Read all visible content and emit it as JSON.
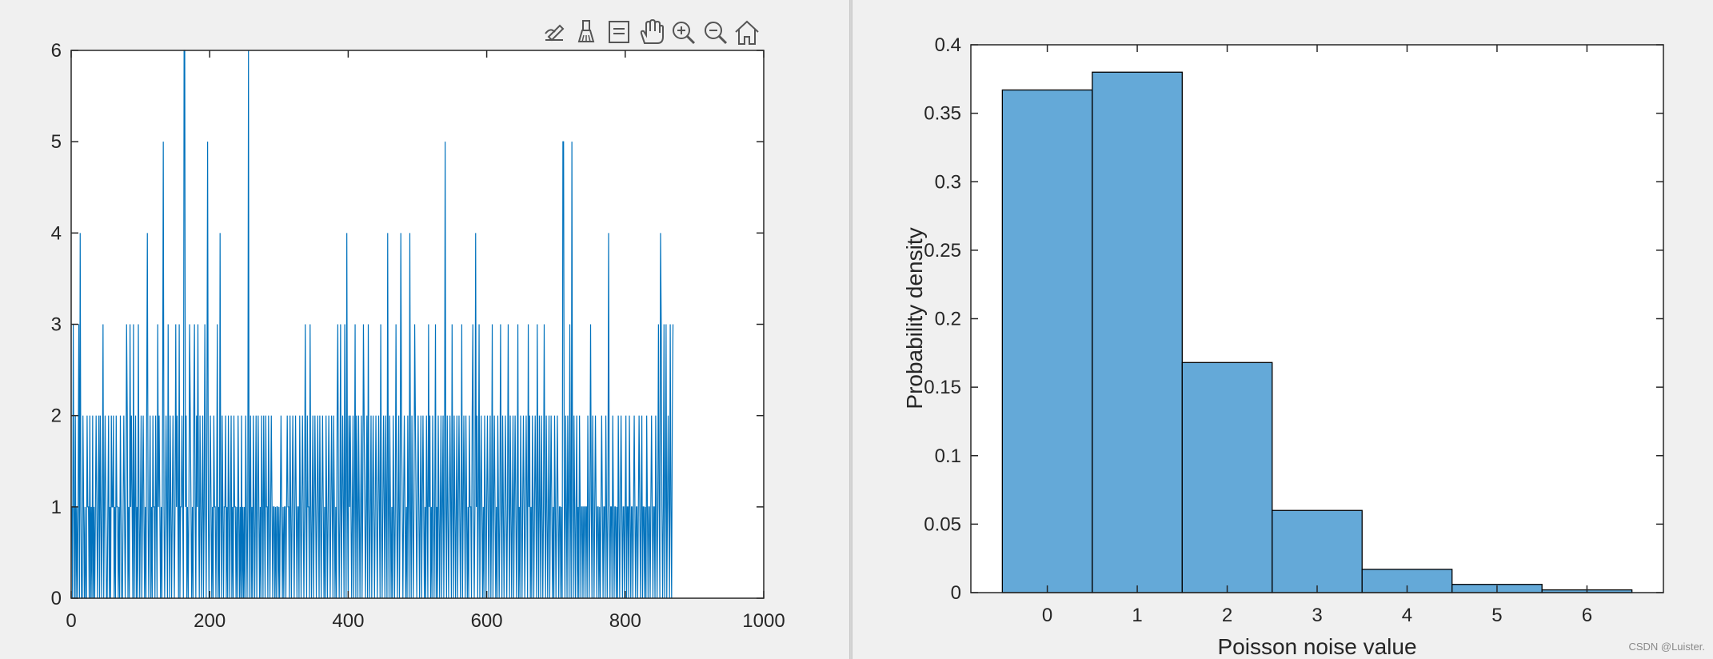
{
  "toolbar": {
    "icons": [
      "edit-icon",
      "brush-icon",
      "datatip-icon",
      "pan-icon",
      "zoom-in-icon",
      "zoom-out-icon",
      "home-icon"
    ]
  },
  "watermark": "CSDN @Luister.",
  "colors": {
    "series": "#0072bd",
    "bar_fill": "#64a9d8",
    "bar_edge": "#000000",
    "axes_bg": "#ffffff",
    "figure_bg": "#f0f0f0"
  },
  "chart_data": [
    {
      "type": "line",
      "title": "",
      "xlabel": "",
      "ylabel": "",
      "xlim": [
        0,
        1000
      ],
      "ylim": [
        0,
        6
      ],
      "xticks": [
        0,
        200,
        400,
        600,
        800,
        1000
      ],
      "yticks": [
        0,
        1,
        2,
        3,
        4,
        5,
        6
      ],
      "grid": false,
      "series": [
        {
          "x_start": 1,
          "x_step": 1,
          "values": [
            1,
            0,
            3,
            1,
            0,
            2,
            0,
            1,
            0,
            1,
            3,
            0,
            4,
            1,
            0,
            0,
            2,
            1,
            0,
            1,
            0,
            0,
            2,
            1,
            1,
            0,
            2,
            0,
            1,
            0,
            2,
            0,
            1,
            0,
            1,
            2,
            1,
            0,
            1,
            2,
            0,
            2,
            1,
            0,
            1,
            3,
            0,
            1,
            2,
            1,
            0,
            0,
            1,
            2,
            0,
            1,
            0,
            2,
            1,
            1,
            2,
            0,
            1,
            0,
            2,
            1,
            1,
            0,
            1,
            0,
            2,
            1,
            0,
            0,
            1,
            2,
            1,
            0,
            1,
            3,
            2,
            0,
            1,
            0,
            3,
            1,
            2,
            1,
            0,
            3,
            0,
            1,
            2,
            0,
            1,
            0,
            3,
            1,
            0,
            1,
            2,
            0,
            1,
            2,
            1,
            0,
            1,
            0,
            2,
            4,
            1,
            0,
            1,
            2,
            0,
            1,
            0,
            2,
            1,
            1,
            0,
            2,
            1,
            0,
            3,
            1,
            2,
            1,
            0,
            1,
            0,
            2,
            5,
            1,
            0,
            1,
            2,
            1,
            0,
            3,
            1,
            0,
            2,
            1,
            0,
            1,
            2,
            1,
            0,
            1,
            3,
            1,
            2,
            1,
            0,
            3,
            0,
            1,
            1,
            2,
            1,
            0,
            6,
            6,
            1,
            2,
            0,
            1,
            0,
            1,
            3,
            2,
            1,
            0,
            1,
            0,
            2,
            3,
            1,
            0,
            2,
            1,
            3,
            1,
            0,
            2,
            1,
            0,
            1,
            2,
            0,
            1,
            3,
            1,
            0,
            2,
            5,
            1,
            0,
            1,
            2,
            1,
            0,
            1,
            0,
            2,
            1,
            1,
            0,
            1,
            3,
            0,
            1,
            0,
            4,
            1,
            0,
            2,
            1,
            0,
            1,
            1,
            2,
            0,
            1,
            0,
            2,
            1,
            0,
            1,
            2,
            0,
            1,
            0,
            2,
            1,
            1,
            0,
            1,
            0,
            2,
            1,
            0,
            1,
            0,
            2,
            0,
            1,
            0,
            1,
            0,
            2,
            1,
            0,
            1,
            6,
            0,
            1,
            2,
            0,
            1,
            0,
            2,
            1,
            0,
            1,
            2,
            0,
            1,
            2,
            1,
            0,
            1,
            0,
            2,
            1,
            0,
            2,
            1,
            0,
            2,
            1,
            1,
            0,
            2,
            1,
            0,
            1,
            2,
            1,
            0,
            1,
            1,
            0,
            1,
            0,
            1,
            1,
            0,
            1,
            0,
            1,
            2,
            1,
            0,
            1,
            0,
            1,
            1,
            0,
            1,
            2,
            1,
            1,
            0,
            2,
            1,
            0,
            1,
            2,
            1,
            0,
            1,
            2,
            1,
            0,
            1,
            1,
            0,
            2,
            1,
            0,
            1,
            2,
            1,
            0,
            1,
            3,
            1,
            0,
            2,
            1,
            1,
            0,
            3,
            1,
            0,
            1,
            2,
            0,
            1,
            2,
            1,
            0,
            1,
            2,
            1,
            0,
            2,
            1,
            0,
            1,
            2,
            1,
            0,
            1,
            0,
            2,
            1,
            0,
            1,
            2,
            1,
            0,
            1,
            2,
            1,
            0,
            2,
            1,
            0,
            1,
            0,
            2,
            3,
            1,
            0,
            1,
            3,
            0,
            1,
            2,
            1,
            0,
            3,
            1,
            0,
            4,
            1,
            0,
            2,
            1,
            2,
            1,
            0,
            1,
            2,
            0,
            1,
            3,
            0,
            2,
            1,
            0,
            2,
            1,
            0,
            1,
            2,
            0,
            1,
            3,
            2,
            1,
            0,
            1,
            2,
            0,
            3,
            1,
            0,
            1,
            2,
            0,
            1,
            2,
            1,
            0,
            1,
            2,
            1,
            0,
            1,
            2,
            1,
            0,
            3,
            1,
            0,
            1,
            2,
            1,
            0,
            2,
            1,
            0,
            4,
            1,
            0,
            2,
            1,
            0,
            1,
            0,
            2,
            1,
            0,
            1,
            3,
            1,
            0,
            1,
            2,
            0,
            1,
            4,
            2,
            1,
            0,
            1,
            2,
            1,
            0,
            1,
            0,
            2,
            1,
            0,
            4,
            1,
            0,
            2,
            1,
            0,
            1,
            3,
            2,
            1,
            0,
            1,
            2,
            1,
            0,
            1,
            2,
            0,
            1,
            2,
            1,
            0,
            1,
            0,
            2,
            1,
            0,
            3,
            1,
            2,
            0,
            1,
            0,
            2,
            1,
            0,
            1,
            3,
            0,
            1,
            0,
            2,
            1,
            0,
            1,
            2,
            0,
            1,
            2,
            0,
            1,
            5,
            1,
            0,
            2,
            1,
            0,
            1,
            2,
            1,
            0,
            3,
            1,
            0,
            2,
            1,
            0,
            1,
            2,
            0,
            1,
            2,
            1,
            0,
            1,
            3,
            0,
            1,
            2,
            1,
            0,
            2,
            1,
            0,
            1,
            0,
            2,
            1,
            1,
            0,
            2,
            3,
            1,
            0,
            1,
            4,
            1,
            2,
            0,
            1,
            3,
            0,
            1,
            2,
            1,
            0,
            1,
            0,
            2,
            1,
            0,
            1,
            2,
            1,
            0,
            1,
            2,
            0,
            1,
            3,
            0,
            1,
            2,
            1,
            0,
            1,
            0,
            2,
            1,
            0,
            1,
            3,
            1,
            0,
            2,
            1,
            0,
            1,
            2,
            1,
            0,
            1,
            3,
            1,
            0,
            2,
            1,
            0,
            1,
            2,
            0,
            1,
            2,
            1,
            0,
            1,
            3,
            0,
            1,
            0,
            2,
            1,
            0,
            1,
            2,
            1,
            0,
            1,
            2,
            1,
            0,
            3,
            1,
            2,
            0,
            1,
            0,
            2,
            1,
            0,
            1,
            2,
            1,
            0,
            3,
            1,
            0,
            2,
            1,
            0,
            2,
            1,
            0,
            1,
            3,
            1,
            0,
            2,
            1,
            0,
            1,
            2,
            0,
            1,
            2,
            1,
            0,
            1,
            0,
            2,
            1,
            0,
            1,
            2,
            1,
            0,
            1,
            1,
            0,
            1,
            0,
            5,
            5,
            1,
            0,
            2,
            1,
            0,
            2,
            1,
            0,
            3,
            1,
            0,
            5,
            1,
            0,
            2,
            1,
            0,
            1,
            2,
            0,
            1,
            0,
            2,
            1,
            0,
            1,
            1,
            0,
            1,
            1,
            0,
            1,
            1,
            0,
            2,
            1,
            0,
            1,
            3,
            1,
            0,
            2,
            1,
            0,
            1,
            2,
            1,
            0,
            1,
            1,
            0,
            1,
            0,
            1,
            2,
            1,
            0,
            1,
            1,
            0,
            2,
            1,
            0,
            1,
            4,
            1,
            0,
            1,
            1,
            0,
            2,
            1,
            0,
            1,
            1,
            0,
            1,
            0,
            2,
            1,
            0,
            1,
            2,
            1,
            0,
            1,
            1,
            0,
            1,
            2,
            0,
            1,
            1,
            0,
            2,
            1,
            0,
            1,
            1,
            0,
            1,
            2,
            1,
            0,
            1,
            1,
            0,
            1,
            2,
            1,
            0,
            1,
            2,
            0,
            1,
            1,
            0,
            1,
            0,
            2,
            1,
            0,
            1,
            1,
            0,
            1,
            2,
            1,
            0,
            1,
            1,
            0,
            2,
            1,
            0,
            1,
            3,
            1,
            0,
            4,
            3,
            1,
            0,
            1,
            3,
            0,
            1,
            3,
            0,
            1,
            2,
            1,
            0,
            3,
            1,
            0,
            2,
            3
          ],
          "note": ""
        }
      ]
    },
    {
      "type": "bar",
      "title": "",
      "xlabel": "Poisson noise value",
      "ylabel": "Probability density",
      "categories": [
        "0",
        "1",
        "2",
        "3",
        "4",
        "5",
        "6"
      ],
      "values": [
        0.367,
        0.38,
        0.168,
        0.06,
        0.017,
        0.006,
        0.002
      ],
      "xlim": [
        -0.85,
        6.85
      ],
      "ylim": [
        0,
        0.4
      ],
      "yticks": [
        "0",
        "0.05",
        "0.1",
        "0.15",
        "0.2",
        "0.25",
        "0.3",
        "0.35",
        "0.4"
      ],
      "grid": false
    }
  ]
}
